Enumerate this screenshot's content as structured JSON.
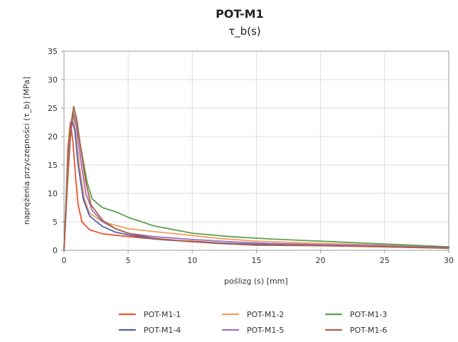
{
  "chart_data": {
    "type": "line",
    "title": "POT-M1",
    "subtitle": "τ_b(s)",
    "xlabel": "poślizg (s) [mm]",
    "ylabel": "naprężenia przyczepności (τ_b) [MPa]",
    "xlim": [
      0,
      30
    ],
    "ylim": [
      0,
      35
    ],
    "xticks": [
      0,
      5,
      10,
      15,
      20,
      25,
      30
    ],
    "yticks": [
      0,
      5,
      10,
      15,
      20,
      25,
      30,
      35
    ],
    "grid": true,
    "legend_position": "bottom",
    "series": [
      {
        "name": "POT-M1-1",
        "color": "#e8552d",
        "points": [
          [
            0,
            0
          ],
          [
            0.15,
            8
          ],
          [
            0.3,
            18
          ],
          [
            0.5,
            22.5
          ],
          [
            0.7,
            19
          ],
          [
            0.9,
            13
          ],
          [
            1.1,
            8
          ],
          [
            1.4,
            5
          ],
          [
            2,
            3.6
          ],
          [
            3,
            2.9
          ],
          [
            5,
            2.4
          ],
          [
            8,
            1.8
          ],
          [
            10,
            1.6
          ],
          [
            12,
            1.3
          ],
          [
            12.3,
            1.2
          ]
        ]
      },
      {
        "name": "POT-M1-2",
        "color": "#f0a060",
        "points": [
          [
            0,
            0
          ],
          [
            0.2,
            10
          ],
          [
            0.4,
            19
          ],
          [
            0.65,
            24
          ],
          [
            0.9,
            21
          ],
          [
            1.2,
            15
          ],
          [
            1.6,
            9
          ],
          [
            2,
            6.5
          ],
          [
            3,
            5
          ],
          [
            5,
            3.8
          ],
          [
            7,
            3.3
          ],
          [
            10,
            2.6
          ],
          [
            12,
            2.1
          ],
          [
            15,
            1.6
          ],
          [
            20,
            1.2
          ],
          [
            25,
            0.9
          ],
          [
            30,
            0.5
          ]
        ]
      },
      {
        "name": "POT-M1-3",
        "color": "#5fa050",
        "points": [
          [
            0,
            0
          ],
          [
            0.2,
            11
          ],
          [
            0.45,
            20
          ],
          [
            0.7,
            24.5
          ],
          [
            1,
            22
          ],
          [
            1.4,
            17
          ],
          [
            1.8,
            12
          ],
          [
            2.2,
            9
          ],
          [
            3,
            7.5
          ],
          [
            4,
            6.8
          ],
          [
            5,
            5.8
          ],
          [
            7,
            4.3
          ],
          [
            10,
            3
          ],
          [
            13,
            2.4
          ],
          [
            16,
            2
          ],
          [
            18,
            1.8
          ],
          [
            20,
            1.6
          ],
          [
            25,
            1.1
          ],
          [
            30,
            0.6
          ]
        ]
      },
      {
        "name": "POT-M1-4",
        "color": "#5060b0",
        "points": [
          [
            0,
            0
          ],
          [
            0.2,
            9
          ],
          [
            0.4,
            18
          ],
          [
            0.6,
            23
          ],
          [
            0.85,
            21
          ],
          [
            1.1,
            15
          ],
          [
            1.5,
            9
          ],
          [
            2,
            6
          ],
          [
            3,
            4.2
          ],
          [
            4,
            3.2
          ],
          [
            5,
            2.7
          ],
          [
            7,
            2
          ],
          [
            10,
            1.5
          ],
          [
            13,
            1.2
          ],
          [
            16,
            1
          ],
          [
            20,
            0.9
          ],
          [
            25,
            0.7
          ],
          [
            30,
            0.5
          ]
        ]
      },
      {
        "name": "POT-M1-5",
        "color": "#a070c0",
        "points": [
          [
            0,
            0
          ],
          [
            0.2,
            10
          ],
          [
            0.45,
            19
          ],
          [
            0.7,
            24
          ],
          [
            0.95,
            22
          ],
          [
            1.3,
            16
          ],
          [
            1.7,
            10
          ],
          [
            2.2,
            7
          ],
          [
            3,
            5
          ],
          [
            4,
            3.8
          ],
          [
            5,
            3
          ],
          [
            7,
            2.4
          ],
          [
            10,
            1.9
          ],
          [
            13,
            1.5
          ],
          [
            16,
            1.2
          ],
          [
            20,
            1
          ],
          [
            25,
            0.8
          ],
          [
            30,
            0.4
          ]
        ]
      },
      {
        "name": "POT-M1-6",
        "color": "#b06040",
        "points": [
          [
            0,
            0
          ],
          [
            0.25,
            11
          ],
          [
            0.5,
            20
          ],
          [
            0.75,
            25.3
          ],
          [
            1,
            23
          ],
          [
            1.3,
            18
          ],
          [
            1.7,
            12
          ],
          [
            2.1,
            8
          ],
          [
            3,
            5.3
          ],
          [
            4,
            3.8
          ],
          [
            5,
            3
          ],
          [
            7,
            2.1
          ],
          [
            10,
            1.5
          ],
          [
            12,
            1.2
          ],
          [
            15,
            0.9
          ],
          [
            20,
            0.8
          ],
          [
            25,
            0.6
          ],
          [
            30,
            0.35
          ]
        ]
      }
    ]
  }
}
